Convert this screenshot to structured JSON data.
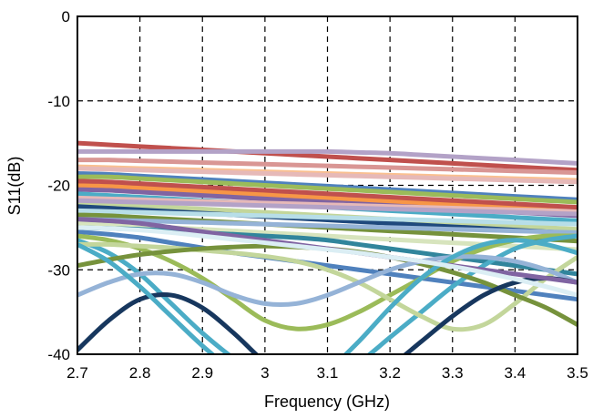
{
  "chart_data": {
    "type": "line",
    "title": "",
    "xlabel": "Frequency (GHz)",
    "ylabel": "S11(dB)",
    "xlim": [
      2.7,
      3.5
    ],
    "ylim": [
      -40,
      0
    ],
    "x_ticks": [
      "2.7",
      "2.8",
      "2.9",
      "3",
      "3.1",
      "3.2",
      "3.3",
      "3.4",
      "3.5"
    ],
    "y_ticks": [
      "0",
      "-10",
      "-20",
      "-30",
      "-40"
    ],
    "grid": "dashed",
    "legend": "none",
    "x": [
      2.7,
      2.75,
      2.8,
      2.85,
      2.9,
      2.95,
      3.0,
      3.05,
      3.1,
      3.15,
      3.2,
      3.25,
      3.3,
      3.35,
      3.4,
      3.45,
      3.5
    ],
    "series": [
      {
        "color": "#c0504d",
        "values": [
          -15.0,
          -15.2,
          -15.4,
          -15.6,
          -15.8,
          -16.0,
          -16.2,
          -16.4,
          -16.6,
          -16.8,
          -17.0,
          -17.2,
          -17.4,
          -17.6,
          -17.8,
          -18.0,
          -18.2
        ]
      },
      {
        "color": "#b3a2c7",
        "values": [
          -16.0,
          -16.0,
          -16.0,
          -16.0,
          -16.0,
          -16.0,
          -16.0,
          -16.0,
          -16.0,
          -16.1,
          -16.2,
          -16.4,
          -16.6,
          -16.8,
          -17.0,
          -17.2,
          -17.4
        ]
      },
      {
        "color": "#d99694",
        "values": [
          -17.0,
          -17.0,
          -17.1,
          -17.2,
          -17.3,
          -17.4,
          -17.5,
          -17.6,
          -17.7,
          -17.8,
          -17.9,
          -18.0,
          -18.1,
          -18.2,
          -18.3,
          -18.4,
          -18.5
        ]
      },
      {
        "color": "#fac090",
        "values": [
          -17.8,
          -17.9,
          -18.0,
          -18.1,
          -18.2,
          -18.3,
          -18.4,
          -18.5,
          -18.6,
          -18.7,
          -18.8,
          -18.9,
          -19.0,
          -19.1,
          -19.2,
          -19.3,
          -19.4
        ]
      },
      {
        "color": "#4f81bd",
        "values": [
          -18.6,
          -18.7,
          -18.9,
          -19.1,
          -19.3,
          -19.5,
          -19.7,
          -19.9,
          -20.1,
          -20.3,
          -20.5,
          -20.7,
          -20.9,
          -21.1,
          -21.3,
          -21.5,
          -21.7
        ]
      },
      {
        "color": "#9bbb59",
        "values": [
          -19.0,
          -19.0,
          -19.2,
          -19.4,
          -19.6,
          -19.8,
          -20.0,
          -20.2,
          -20.4,
          -20.6,
          -20.8,
          -21.0,
          -21.2,
          -21.4,
          -21.6,
          -21.8,
          -22.0
        ]
      },
      {
        "color": "#f79646",
        "values": [
          -20.0,
          -20.1,
          -20.3,
          -20.5,
          -20.7,
          -20.9,
          -21.1,
          -21.3,
          -21.5,
          -21.7,
          -21.9,
          -22.1,
          -22.3,
          -22.5,
          -22.7,
          -22.9,
          -23.1
        ]
      },
      {
        "color": "#8064a2",
        "values": [
          -20.5,
          -20.6,
          -20.8,
          -21.0,
          -21.2,
          -21.4,
          -21.6,
          -21.8,
          -22.0,
          -22.2,
          -22.4,
          -22.6,
          -22.8,
          -23.0,
          -23.2,
          -23.4,
          -23.6
        ]
      },
      {
        "color": "#4bacc6",
        "values": [
          -21.0,
          -21.2,
          -21.4,
          -21.6,
          -21.8,
          -22.0,
          -22.2,
          -22.4,
          -22.6,
          -22.8,
          -23.0,
          -23.2,
          -23.4,
          -23.6,
          -23.8,
          -24.0,
          -24.2
        ]
      },
      {
        "color": "#e6b9b8",
        "values": [
          -21.5,
          -21.6,
          -21.7,
          -21.8,
          -21.9,
          -22.0,
          -22.1,
          -22.2,
          -22.3,
          -22.4,
          -22.5,
          -22.6,
          -22.7,
          -22.8,
          -22.9,
          -23.0,
          -23.1
        ]
      },
      {
        "color": "#c3d69b",
        "values": [
          -22.0,
          -22.2,
          -22.4,
          -22.6,
          -22.8,
          -23.0,
          -23.2,
          -23.4,
          -23.6,
          -23.8,
          -24.0,
          -24.2,
          -24.4,
          -24.6,
          -24.8,
          -25.0,
          -25.2
        ]
      },
      {
        "color": "#1f497d",
        "values": [
          -22.5,
          -22.7,
          -22.9,
          -23.1,
          -23.3,
          -23.5,
          -23.7,
          -23.9,
          -24.1,
          -24.3,
          -24.5,
          -24.7,
          -24.9,
          -25.1,
          -25.3,
          -25.5,
          -25.7
        ]
      },
      {
        "color": "#b7dee8",
        "values": [
          -23.0,
          -23.1,
          -23.2,
          -23.3,
          -23.4,
          -23.5,
          -23.6,
          -23.7,
          -23.8,
          -23.9,
          -24.0,
          -24.1,
          -24.2,
          -24.3,
          -24.4,
          -24.5,
          -24.6
        ]
      },
      {
        "color": "#76923c",
        "values": [
          -23.5,
          -23.6,
          -23.8,
          -24.0,
          -24.2,
          -24.4,
          -24.6,
          -24.8,
          -25.0,
          -25.2,
          -25.4,
          -25.6,
          -25.8,
          -26.0,
          -26.2,
          -26.4,
          -26.6
        ]
      },
      {
        "color": "#95b3d7",
        "values": [
          -24.0,
          -24.1,
          -24.2,
          -24.3,
          -24.4,
          -24.5,
          -24.6,
          -24.7,
          -24.8,
          -24.9,
          -25.0,
          -25.1,
          -25.2,
          -25.3,
          -25.4,
          -25.5,
          -25.6
        ]
      },
      {
        "color": "#d7e4bd",
        "values": [
          -24.5,
          -24.6,
          -24.8,
          -25.0,
          -25.2,
          -25.4,
          -25.6,
          -25.8,
          -26.0,
          -26.2,
          -26.4,
          -26.6,
          -26.8,
          -27.0,
          -27.2,
          -27.4,
          -27.6
        ]
      },
      {
        "color": "#31859c",
        "values": [
          -25.0,
          -25.1,
          -25.2,
          -25.4,
          -25.6,
          -25.8,
          -26.0,
          -26.2,
          -26.5,
          -27.0,
          -27.5,
          -28.0,
          -28.5,
          -29.0,
          -29.5,
          -30.0,
          -30.5
        ]
      },
      {
        "color": "#4f81bd",
        "values": [
          -25.5,
          -25.8,
          -26.2,
          -26.8,
          -27.4,
          -28.0,
          -28.5,
          -29.0,
          -29.5,
          -30.0,
          -30.5,
          -31.0,
          -31.5,
          -32.0,
          -32.5,
          -33.0,
          -33.5
        ]
      },
      {
        "color": "#9bbb59",
        "values": [
          -26.0,
          -26.5,
          -27.5,
          -29.0,
          -31.0,
          -33.5,
          -36.0,
          -37.0,
          -36.5,
          -35.0,
          -33.0,
          -31.0,
          -29.0,
          -27.5,
          -26.5,
          -26.0,
          -26.0
        ]
      },
      {
        "color": "#4bacc6",
        "values": [
          -26.5,
          -28.0,
          -30.5,
          -34.0,
          -37.5,
          -40.5,
          -43.0,
          -44.0,
          -43.0,
          -41.0,
          -38.0,
          -35.0,
          -32.0,
          -29.5,
          -27.5,
          -26.5,
          -26.0
        ]
      },
      {
        "color": "#c3d69b",
        "values": [
          -27.0,
          -27.0,
          -27.2,
          -27.4,
          -27.7,
          -28.0,
          -28.4,
          -29.0,
          -30.0,
          -31.5,
          -33.5,
          -35.5,
          -37.0,
          -36.5,
          -34.0,
          -31.0,
          -28.5
        ]
      },
      {
        "color": "#76923c",
        "values": [
          -29.5,
          -28.8,
          -28.2,
          -27.8,
          -27.5,
          -27.3,
          -27.2,
          -27.3,
          -27.5,
          -27.9,
          -28.5,
          -29.3,
          -30.3,
          -31.5,
          -33.0,
          -34.5,
          -36.5
        ]
      },
      {
        "color": "#95b3d7",
        "values": [
          -33.0,
          -31.5,
          -30.5,
          -30.5,
          -31.5,
          -33.0,
          -34.0,
          -34.0,
          -33.0,
          -31.5,
          -30.0,
          -29.0,
          -28.5,
          -28.5,
          -29.0,
          -30.0,
          -31.5
        ]
      },
      {
        "color": "#17375e",
        "values": [
          -39.5,
          -36.0,
          -33.5,
          -33.0,
          -34.5,
          -37.5,
          -41.0,
          -44.0,
          -45.0,
          -44.0,
          -41.5,
          -38.5,
          -35.5,
          -33.0,
          -31.5,
          -31.0,
          -31.5
        ]
      },
      {
        "color": "#8064a2",
        "values": [
          -24.0,
          -24.2,
          -24.5,
          -25.0,
          -25.5,
          -26.0,
          -26.5,
          -27.0,
          -27.5,
          -28.0,
          -28.5,
          -29.0,
          -29.5,
          -30.0,
          -30.5,
          -31.0,
          -31.5
        ]
      },
      {
        "color": "#4bacc6",
        "values": [
          -27.0,
          -29.0,
          -32.0,
          -35.5,
          -39.0,
          -42.0,
          -44.0,
          -44.5,
          -42.0,
          -38.5,
          -34.5,
          -31.0,
          -28.5,
          -27.0,
          -26.5,
          -27.0,
          -28.0
        ]
      },
      {
        "color": "#e6b9b8",
        "values": [
          -18.0,
          -18.1,
          -18.2,
          -18.3,
          -18.4,
          -18.5,
          -18.6,
          -18.7,
          -18.8,
          -18.9,
          -19.0,
          -19.1,
          -19.2,
          -19.3,
          -19.4,
          -19.5,
          -19.6
        ]
      },
      {
        "color": "#dbeef4",
        "values": [
          -25.0,
          -25.1,
          -25.3,
          -25.6,
          -26.0,
          -26.4,
          -26.8,
          -27.2,
          -27.6,
          -28.0,
          -28.5,
          -29.0,
          -29.6,
          -30.3,
          -31.1,
          -32.0,
          -33.0
        ]
      },
      {
        "color": "#c0504d",
        "values": [
          -19.5,
          -19.6,
          -19.8,
          -20.0,
          -20.2,
          -20.4,
          -20.6,
          -20.8,
          -21.0,
          -21.2,
          -21.4,
          -21.6,
          -21.8,
          -22.0,
          -22.2,
          -22.4,
          -22.6
        ]
      },
      {
        "color": "#b3a2c7",
        "values": [
          -21.8,
          -21.9,
          -22.0,
          -22.1,
          -22.2,
          -22.3,
          -22.4,
          -22.5,
          -22.6,
          -22.7,
          -22.8,
          -22.9,
          -23.0,
          -23.1,
          -23.2,
          -23.3,
          -23.4
        ]
      }
    ]
  }
}
